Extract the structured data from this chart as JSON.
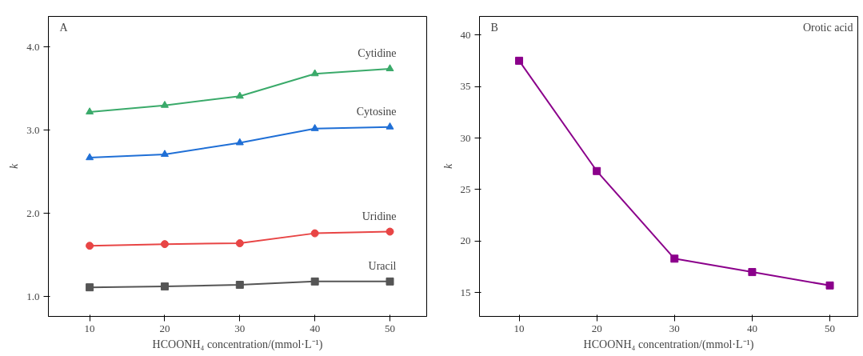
{
  "chart_data": [
    {
      "type": "line",
      "annotations": [
        "A"
      ],
      "xlabel": "HCOONH₄ concentration/(mmol·L⁻¹)",
      "ylabel": "k",
      "x": [
        10,
        20,
        30,
        40,
        50
      ],
      "xlim": [
        4.5,
        54.9
      ],
      "xticks": [
        10,
        20,
        30,
        40,
        50
      ],
      "ylim": [
        0.76,
        4.37
      ],
      "yticks": [
        {
          "value": 1,
          "label": "1.0"
        },
        {
          "value": 2,
          "label": "2.0"
        },
        {
          "value": 3,
          "label": "3.0"
        },
        {
          "value": 4,
          "label": "4.0"
        }
      ],
      "grid": false,
      "legend": false,
      "series": [
        {
          "name": "Cytidine",
          "color": "#3aaa6a",
          "marker": "triangle",
          "values": [
            3.22,
            3.3,
            3.41,
            3.68,
            3.74
          ]
        },
        {
          "name": "Cytosine",
          "color": "#1f6fd6",
          "marker": "triangle",
          "values": [
            2.67,
            2.71,
            2.85,
            3.02,
            3.04
          ]
        },
        {
          "name": "Uridine",
          "color": "#e84545",
          "marker": "circle",
          "values": [
            1.61,
            1.63,
            1.64,
            1.76,
            1.78
          ]
        },
        {
          "name": "Uracil",
          "color": "#555555",
          "marker": "square",
          "values": [
            1.11,
            1.12,
            1.14,
            1.18,
            1.18
          ]
        }
      ]
    },
    {
      "type": "line",
      "annotations": [
        "B"
      ],
      "xlabel": "HCOONH₄ concentration/(mmol·L⁻¹)",
      "ylabel": "k",
      "x": [
        10,
        20,
        30,
        40,
        50
      ],
      "xlim": [
        4.9,
        53.6
      ],
      "xticks": [
        10,
        20,
        30,
        40,
        50
      ],
      "ylim": [
        12.7,
        41.8
      ],
      "yticks": [
        15,
        20,
        25,
        30,
        35,
        40
      ],
      "grid": false,
      "legend": "top right",
      "series": [
        {
          "name": "Orotic acid",
          "color": "#8b008b",
          "marker": "square",
          "values": [
            37.5,
            26.8,
            18.3,
            17.0,
            15.7
          ]
        }
      ]
    }
  ]
}
